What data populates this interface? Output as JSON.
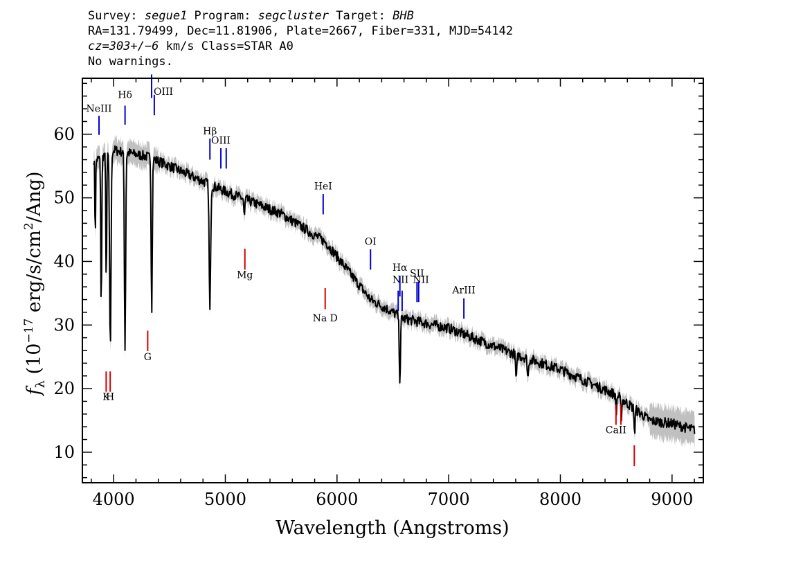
{
  "header": {
    "line1": {
      "survey_label": "Survey: ",
      "survey": "segue1",
      "program_label": " Program: ",
      "program": "segcluster",
      "target_label": " Target: ",
      "target": "BHB"
    },
    "line2": "RA=131.79499, Dec=11.81906, Plate=2667, Fiber=331, MJD=54142",
    "line3": {
      "cz": "cz=303+/−6",
      "rest": " km/s Class=STAR A0"
    },
    "line4": "No warnings."
  },
  "chart_data": {
    "type": "line",
    "xlabel": "Wavelength (Angstroms)",
    "ylabel_parts": {
      "f": "f",
      "sub": "λ",
      "pre": " (10",
      "exp1": "−17",
      "mid": " erg/s/cm",
      "exp2": "2",
      "post": "/Ang)"
    },
    "xlim": [
      3720,
      9280
    ],
    "ylim": [
      5.2,
      68.8
    ],
    "xticks": [
      "4000",
      "5000",
      "6000",
      "7000",
      "8000",
      "9000"
    ],
    "yticks": [
      "10",
      "20",
      "30",
      "40",
      "50",
      "60"
    ],
    "colors": {
      "flux": "#000000",
      "error_band": "#c0c0c0",
      "emission": "#0000cc",
      "absorption": "#d40000"
    },
    "continuum": [
      [
        3850,
        56
      ],
      [
        4000,
        57.5
      ],
      [
        4300,
        56.5
      ],
      [
        4500,
        55
      ],
      [
        5000,
        51
      ],
      [
        5500,
        47.5
      ],
      [
        5900,
        43
      ],
      [
        6300,
        34
      ],
      [
        6600,
        31
      ],
      [
        7000,
        29.5
      ],
      [
        7500,
        26
      ],
      [
        8000,
        23
      ],
      [
        8500,
        19
      ],
      [
        8800,
        15
      ],
      [
        9000,
        14.5
      ],
      [
        9200,
        13.5
      ]
    ],
    "absorption_features": [
      {
        "x": 3835,
        "depth": 12,
        "width": 5
      },
      {
        "x": 3889,
        "depth": 24,
        "width": 6
      },
      {
        "x": 3934,
        "depth": 20,
        "width": 6
      },
      {
        "x": 3970,
        "depth": 31,
        "width": 9
      },
      {
        "x": 4102,
        "depth": 31,
        "width": 8
      },
      {
        "x": 4341,
        "depth": 24,
        "width": 7
      },
      {
        "x": 4862,
        "depth": 20,
        "width": 9
      },
      {
        "x": 5170,
        "depth": 3,
        "width": 6
      },
      {
        "x": 6563,
        "depth": 10,
        "width": 8
      },
      {
        "x": 7605,
        "depth": 4,
        "width": 8
      },
      {
        "x": 7710,
        "depth": 3,
        "width": 8
      },
      {
        "x": 8500,
        "depth": 3,
        "width": 6
      },
      {
        "x": 8545,
        "depth": 3,
        "width": 6
      },
      {
        "x": 8665,
        "depth": 4,
        "width": 6
      }
    ],
    "lines": [
      {
        "label": "NeIII",
        "x": 3869,
        "y0": 59.9,
        "y1": 62.9,
        "kind": "emission",
        "label_y": 63.5,
        "anchor": "middle"
      },
      {
        "label": "Hδ",
        "x": 4102,
        "y0": 61.5,
        "y1": 64.5,
        "kind": "emission",
        "label_y": 65.7,
        "anchor": "middle"
      },
      {
        "label": "OIII",
        "x": 4340,
        "y0": 65.7,
        "y1": 69.5,
        "kind": "emission",
        "label_y": 66.2,
        "anchor": "start"
      },
      {
        "label": "",
        "x": 4364,
        "y0": 63.0,
        "y1": 66.2,
        "kind": "emission",
        "label_y": 0,
        "anchor": "middle"
      },
      {
        "label": "Hβ",
        "x": 4862,
        "y0": 56.0,
        "y1": 59.3,
        "kind": "emission",
        "label_y": 60.0,
        "anchor": "middle"
      },
      {
        "label": "OIII",
        "x": 4960,
        "y0": 54.6,
        "y1": 57.8,
        "kind": "emission",
        "label_y": 58.5,
        "anchor": "middle"
      },
      {
        "label": "",
        "x": 5008,
        "y0": 54.6,
        "y1": 57.8,
        "kind": "emission",
        "label_y": 0,
        "anchor": "middle"
      },
      {
        "label": "HeI",
        "x": 5876,
        "y0": 47.4,
        "y1": 50.6,
        "kind": "emission",
        "label_y": 51.3,
        "anchor": "middle"
      },
      {
        "label": "OI",
        "x": 6300,
        "y0": 38.7,
        "y1": 41.9,
        "kind": "emission",
        "label_y": 42.6,
        "anchor": "middle"
      },
      {
        "label": "NII",
        "x": 6548,
        "y0": 32.2,
        "y1": 35.4,
        "kind": "emission",
        "label_y": 36.6,
        "anchor": "end"
      },
      {
        "label": "Hα",
        "x": 6563,
        "y0": 34.5,
        "y1": 37.7,
        "kind": "emission",
        "label_y": 38.5,
        "anchor": "middle"
      },
      {
        "label": "",
        "x": 6583,
        "y0": 32.2,
        "y1": 35.4,
        "kind": "emission",
        "label_y": 0,
        "anchor": "middle"
      },
      {
        "label": "SII",
        "x": 6716,
        "y0": 33.6,
        "y1": 36.8,
        "kind": "emission",
        "label_y": 37.6,
        "anchor": "middle"
      },
      {
        "label": "NII",
        "x": 6731,
        "y0": 33.6,
        "y1": 36.8,
        "kind": "emission",
        "label_y": 36.6,
        "anchor": "end"
      },
      {
        "label": "ArIII",
        "x": 7136,
        "y0": 31.0,
        "y1": 34.2,
        "kind": "emission",
        "label_y": 35.0,
        "anchor": "middle"
      },
      {
        "label": "Mg",
        "x": 5175,
        "y0": 38.7,
        "y1": 42.0,
        "kind": "absorption",
        "label_y": 37.4,
        "anchor": "middle"
      },
      {
        "label": "Na D",
        "x": 5894,
        "y0": 32.5,
        "y1": 35.8,
        "kind": "absorption",
        "label_y": 30.6,
        "anchor": "middle"
      },
      {
        "label": "G",
        "x": 4305,
        "y0": 25.9,
        "y1": 29.1,
        "kind": "absorption",
        "label_y": 24.5,
        "anchor": "middle"
      },
      {
        "label": "K",
        "x": 3933,
        "y0": 19.5,
        "y1": 22.7,
        "kind": "absorption",
        "label_y": 18.2,
        "anchor": "middle"
      },
      {
        "label": "H",
        "x": 3969,
        "y0": 19.5,
        "y1": 22.7,
        "kind": "absorption",
        "label_y": 18.2,
        "anchor": "middle"
      },
      {
        "label": "CaII",
        "x": 8498,
        "y0": 14.3,
        "y1": 17.5,
        "kind": "absorption",
        "label_y": 13.0,
        "anchor": "middle"
      },
      {
        "label": "",
        "x": 8542,
        "y0": 14.3,
        "y1": 17.5,
        "kind": "absorption",
        "label_y": 0,
        "anchor": "middle"
      },
      {
        "label": "",
        "x": 8662,
        "y0": 7.8,
        "y1": 11.1,
        "kind": "absorption",
        "label_y": 0,
        "anchor": "middle"
      }
    ]
  }
}
